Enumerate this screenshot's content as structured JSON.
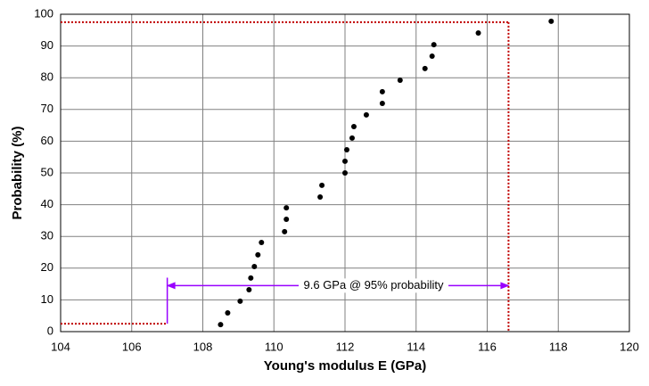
{
  "chart_data": {
    "type": "scatter",
    "x_label": "Young's modulus E (GPa)",
    "y_label": "Probability (%)",
    "series": [
      {
        "color": "#000000",
        "x": [
          108.5,
          108.7,
          109.05,
          109.3,
          109.35,
          109.45,
          109.55,
          109.65,
          110.3,
          110.35,
          110.35,
          111.3,
          111.35,
          112.0,
          112.0,
          112.05,
          112.2,
          112.25,
          112.6,
          113.05,
          113.05,
          113.55,
          114.25,
          114.45,
          114.5,
          115.75,
          117.8
        ],
        "values": [
          2.2,
          5.9,
          9.6,
          13.2,
          16.9,
          20.5,
          24.2,
          28.1,
          31.5,
          35.4,
          39.0,
          42.4,
          46.1,
          50.0,
          53.7,
          57.3,
          61.0,
          64.6,
          68.3,
          71.9,
          75.6,
          79.2,
          82.9,
          86.8,
          90.4,
          94.1,
          97.8
        ]
      }
    ],
    "xlim": [
      104,
      120
    ],
    "xticks": [
      104,
      106,
      108,
      110,
      112,
      114,
      116,
      118,
      120
    ],
    "ylim": [
      0,
      100
    ],
    "yticks": [
      0,
      10,
      20,
      30,
      40,
      50,
      60,
      70,
      80,
      90,
      100
    ],
    "grid": true,
    "limits": {
      "lower": {
        "x": 107,
        "y": 2.5
      },
      "upper": {
        "x": 116.6,
        "y": 97.5
      },
      "color": "#c00000"
    },
    "annotation": {
      "text": "9.6 GPa @ 95% probability",
      "x_start": 107,
      "x_end": 116.6,
      "y": 14.5,
      "tick_top": 17,
      "color": "#9900ff"
    }
  }
}
